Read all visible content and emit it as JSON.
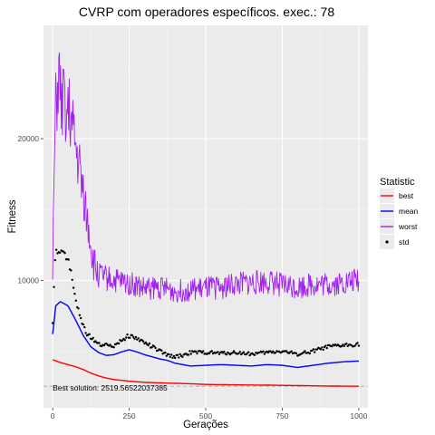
{
  "chart_data": {
    "type": "line",
    "title": "CVRP com operadores específicos. exec.: 78",
    "xlabel": "Gerações",
    "ylabel": "Fitness",
    "xlim": [
      -30,
      1030
    ],
    "ylim": [
      1000,
      28000
    ],
    "x_ticks": [
      0,
      250,
      500,
      750,
      1000
    ],
    "x_tick_labels": [
      "0",
      "250",
      "500",
      "750",
      "1000"
    ],
    "y_ticks": [
      10000,
      20000
    ],
    "y_tick_labels": [
      "10000",
      "20000"
    ],
    "grid": true,
    "legend": {
      "title": "Statistic",
      "placement": "right"
    },
    "series": [
      {
        "name": "best",
        "color": "#ff0000",
        "style": "line",
        "x": [
          0,
          25,
          50,
          75,
          100,
          125,
          150,
          175,
          200,
          250,
          300,
          350,
          400,
          450,
          500,
          600,
          700,
          800,
          900,
          1000
        ],
        "y": [
          4400,
          4200,
          4050,
          3900,
          3700,
          3450,
          3250,
          3100,
          3000,
          2880,
          2800,
          2760,
          2730,
          2700,
          2650,
          2620,
          2600,
          2570,
          2540,
          2520
        ]
      },
      {
        "name": "mean",
        "color": "#0000ff",
        "style": "line",
        "x": [
          0,
          10,
          25,
          50,
          75,
          100,
          125,
          150,
          175,
          200,
          225,
          250,
          275,
          300,
          350,
          375,
          400,
          450,
          500,
          550,
          600,
          650,
          700,
          750,
          800,
          850,
          900,
          950,
          1000
        ],
        "y": [
          6200,
          8200,
          8500,
          8200,
          7200,
          6100,
          5300,
          4900,
          4700,
          4750,
          4950,
          5100,
          4950,
          4750,
          4450,
          4350,
          4150,
          3950,
          4000,
          4050,
          4000,
          3950,
          4050,
          4000,
          3850,
          4000,
          4150,
          4250,
          4300
        ]
      },
      {
        "name": "worst",
        "color": "#a020f0",
        "style": "noisy-line",
        "x": [
          0,
          5,
          10,
          15,
          20,
          25,
          30,
          35,
          40,
          45,
          50,
          55,
          60,
          65,
          70,
          75,
          80,
          85,
          90,
          95,
          100,
          105,
          110,
          115,
          120,
          125,
          130,
          140,
          150,
          175,
          200,
          250,
          300,
          350,
          400,
          450,
          500,
          550,
          600,
          650,
          700,
          750,
          800,
          850,
          900,
          950,
          1000
        ],
        "y": [
          10500,
          18000,
          22000,
          23000,
          24500,
          23000,
          22000,
          22500,
          23000,
          21500,
          21500,
          22000,
          21000,
          20500,
          20000,
          19500,
          18500,
          18500,
          17500,
          16500,
          16500,
          15500,
          14500,
          14000,
          13500,
          12500,
          11500,
          10800,
          10400,
          10200,
          10000,
          9800,
          9400,
          9500,
          9200,
          9300,
          9400,
          9500,
          9700,
          9800,
          9900,
          9700,
          9500,
          9700,
          9700,
          9800,
          10000
        ]
      },
      {
        "name": "std",
        "color": "#000000",
        "style": "points",
        "x": [
          0,
          5,
          10,
          20,
          30,
          40,
          50,
          60,
          70,
          80,
          90,
          100,
          110,
          120,
          130,
          140,
          150,
          175,
          200,
          225,
          250,
          275,
          300,
          325,
          350,
          375,
          400,
          425,
          450,
          500,
          550,
          600,
          650,
          700,
          750,
          800,
          850,
          900,
          950,
          1000
        ],
        "y": [
          6900,
          10400,
          12000,
          12200,
          12100,
          11900,
          11500,
          10500,
          9200,
          8200,
          7300,
          6800,
          6300,
          6100,
          5900,
          5700,
          5500,
          5400,
          5400,
          5800,
          6100,
          5900,
          5600,
          5300,
          5000,
          4700,
          4600,
          4700,
          4900,
          4900,
          4850,
          4900,
          4800,
          4900,
          5000,
          4800,
          5000,
          5300,
          5400,
          5500
        ]
      }
    ],
    "reference_line": {
      "y": 2519.56522037385,
      "style": "dashed",
      "color": "#b3b3b3"
    },
    "annotation": {
      "text": "Best solution: 2519.56522037385",
      "x": 0,
      "y": 2200
    }
  }
}
